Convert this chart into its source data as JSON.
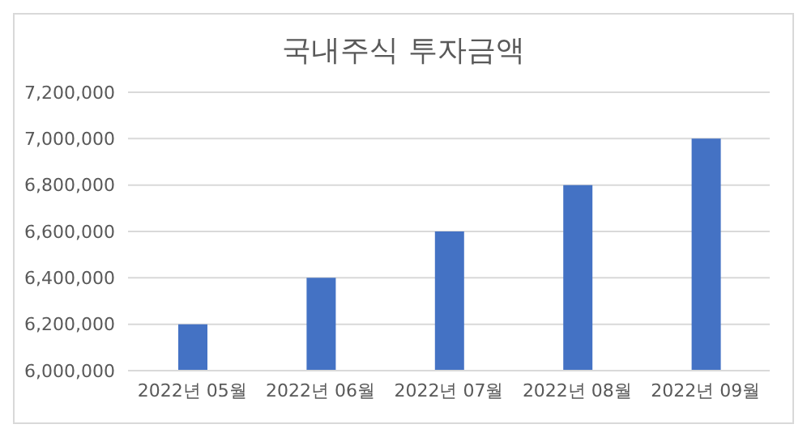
{
  "chart_data": {
    "type": "bar",
    "title": "국내주식 투자금액",
    "categories": [
      "2022년 05월",
      "2022년 06월",
      "2022년 07월",
      "2022년 08월",
      "2022년 09월"
    ],
    "values": [
      6200000,
      6400000,
      6600000,
      6800000,
      7000000
    ],
    "color": "#4472c4",
    "ylim": [
      6000000,
      7200000
    ],
    "yticks": [
      {
        "value": 6000000,
        "label": "6,000,000"
      },
      {
        "value": 6200000,
        "label": "6,200,000"
      },
      {
        "value": 6400000,
        "label": "6,400,000"
      },
      {
        "value": 6600000,
        "label": "6,600,000"
      },
      {
        "value": 6800000,
        "label": "6,800,000"
      },
      {
        "value": 7000000,
        "label": "7,000,000"
      },
      {
        "value": 7200000,
        "label": "7,200,000"
      }
    ],
    "grid": "y"
  }
}
